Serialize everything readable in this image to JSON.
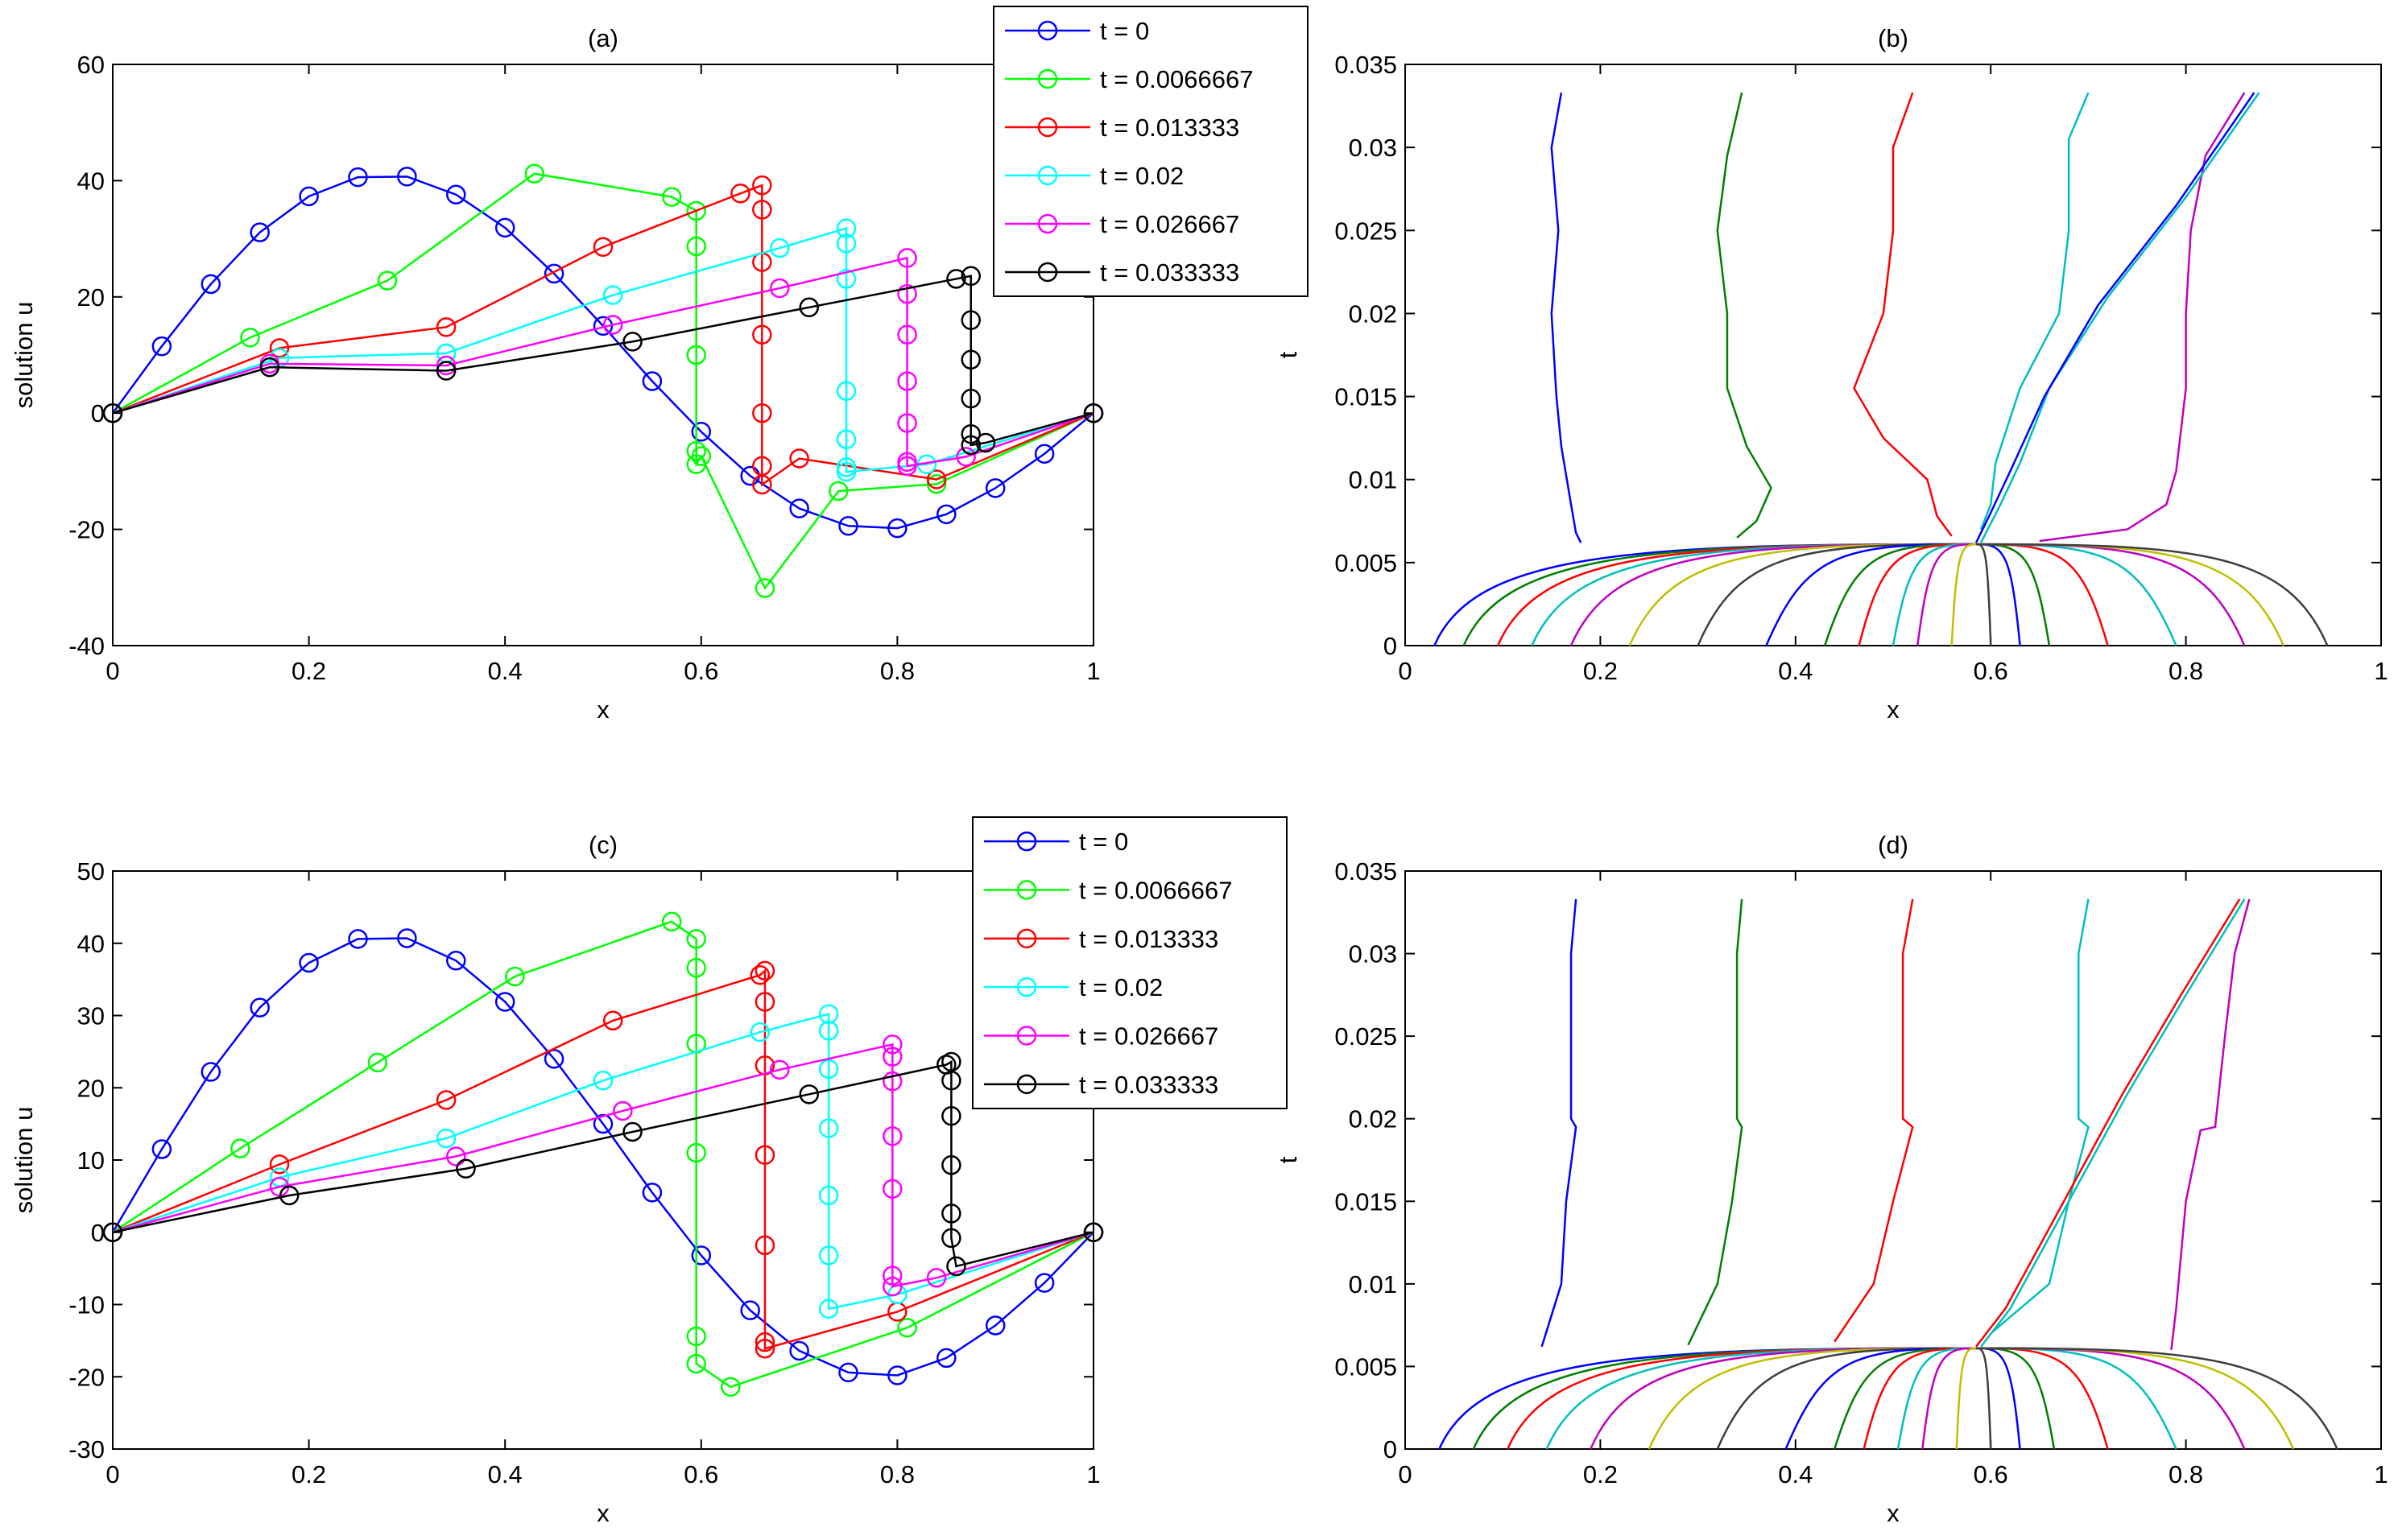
{
  "chart_data": [
    {
      "id": "a",
      "type": "line",
      "title": "(a)",
      "xlabel": "x",
      "ylabel": "solution u",
      "xlim": [
        0,
        1
      ],
      "ylim": [
        -40,
        60
      ],
      "xticks": [
        0,
        0.2,
        0.4,
        0.6,
        0.8,
        1
      ],
      "xtick_labels": [
        "0",
        "0.2",
        "0.4",
        "0.6",
        "0.8",
        "1"
      ],
      "yticks": [
        -40,
        -20,
        0,
        20,
        40,
        60
      ],
      "ytick_labels": [
        "-40",
        "-20",
        "0",
        "20",
        "40",
        "60"
      ],
      "legend": {
        "placement": "top-right",
        "entries": [
          "t = 0",
          "t = 0.0066667",
          "t = 0.013333",
          "t = 0.02",
          "t = 0.026667",
          "t = 0.033333"
        ]
      },
      "series": [
        {
          "name": "t = 0",
          "color": "#0000ff",
          "marker": "circle",
          "x": [
            0,
            0.05,
            0.1,
            0.15,
            0.2,
            0.25,
            0.3,
            0.35,
            0.4,
            0.45,
            0.5,
            0.55,
            0.6,
            0.65,
            0.7,
            0.75,
            0.8,
            0.85,
            0.9,
            0.95,
            1
          ],
          "y": [
            0,
            11.5,
            22.2,
            31.1,
            37.3,
            40.6,
            40.7,
            37.6,
            31.9,
            24,
            15,
            5.5,
            -3.2,
            -10.8,
            -16.4,
            -19.4,
            -19.8,
            -17.4,
            -12.9,
            -7,
            0
          ]
        },
        {
          "name": "t = 0.0066667",
          "color": "#00ff00",
          "marker": "circle",
          "x": [
            0,
            0.14,
            0.28,
            0.43,
            0.57,
            0.595,
            0.595,
            0.595,
            0.595,
            0.595,
            0.6,
            0.665,
            0.74,
            0.84,
            1
          ],
          "y": [
            0,
            13,
            22.8,
            41.2,
            37.2,
            34.8,
            28.7,
            10,
            -6.5,
            -8.8,
            -7.4,
            -30.1,
            -13.4,
            -12.2,
            0
          ]
        },
        {
          "name": "t = 0.013333",
          "color": "#ff0000",
          "marker": "circle",
          "x": [
            0,
            0.17,
            0.34,
            0.5,
            0.64,
            0.662,
            0.662,
            0.662,
            0.662,
            0.662,
            0.662,
            0.662,
            0.7,
            0.84,
            1
          ],
          "y": [
            0,
            11.2,
            14.8,
            28.6,
            37.8,
            39.2,
            35,
            26,
            13.5,
            0,
            -9.1,
            -12.3,
            -7.8,
            -11.4,
            0
          ]
        },
        {
          "name": "t = 0.02",
          "color": "#00ffff",
          "marker": "circle",
          "x": [
            0,
            0.17,
            0.34,
            0.51,
            0.68,
            0.748,
            0.748,
            0.748,
            0.748,
            0.748,
            0.748,
            0.748,
            0.83,
            1
          ],
          "y": [
            0,
            9.5,
            10.3,
            20.3,
            28.4,
            31.8,
            29.2,
            23.1,
            3.8,
            -4.5,
            -9.3,
            -10.1,
            -8.8,
            0
          ]
        },
        {
          "name": "t = 0.026667",
          "color": "#ff00ff",
          "marker": "circle",
          "x": [
            0,
            0.16,
            0.34,
            0.51,
            0.68,
            0.81,
            0.81,
            0.81,
            0.81,
            0.81,
            0.81,
            0.81,
            0.87,
            1
          ],
          "y": [
            0,
            8.5,
            8.2,
            15.2,
            21.5,
            26.7,
            20.5,
            13.5,
            5.5,
            -1.7,
            -8.4,
            -9.1,
            -7.5,
            0
          ]
        },
        {
          "name": "t = 0.033333",
          "color": "#000000",
          "marker": "circle",
          "x": [
            0,
            0.16,
            0.34,
            0.53,
            0.71,
            0.86,
            0.875,
            0.875,
            0.875,
            0.875,
            0.875,
            0.875,
            0.89,
            1
          ],
          "y": [
            0,
            7.9,
            7.3,
            12.3,
            18.2,
            23.1,
            23.6,
            16,
            9.2,
            2.5,
            -3.6,
            -5.5,
            -5.1,
            0
          ]
        }
      ]
    },
    {
      "id": "b",
      "type": "line",
      "title": "(b)",
      "xlabel": "x",
      "ylabel": "t",
      "xlim": [
        0,
        1
      ],
      "ylim": [
        0,
        0.035
      ],
      "xticks": [
        0,
        0.2,
        0.4,
        0.6,
        0.8,
        1
      ],
      "xtick_labels": [
        "0",
        "0.2",
        "0.4",
        "0.6",
        "0.8",
        "1"
      ],
      "yticks": [
        0,
        0.005,
        0.01,
        0.015,
        0.02,
        0.025,
        0.03,
        0.035
      ],
      "ytick_labels": [
        "0",
        "0.005",
        "0.01",
        "0.015",
        "0.02",
        "0.025",
        "0.03",
        "0.035"
      ],
      "mesh_colors": [
        "#0000ff",
        "#007f00",
        "#ff0000",
        "#00bfbf",
        "#bf00bf",
        "#bfbf00",
        "#3f3f3f"
      ],
      "upper_paths": [
        {
          "color": "#0000ff",
          "x": [
            0.16,
            0.15,
            0.157,
            0.15,
            0.155,
            0.16,
            0.17,
            0.175,
            0.18
          ],
          "t": [
            0.0333,
            0.03,
            0.025,
            0.02,
            0.015,
            0.012,
            0.0085,
            0.0068,
            0.0062
          ]
        },
        {
          "color": "#007f00",
          "x": [
            0.345,
            0.33,
            0.32,
            0.33,
            0.33,
            0.35,
            0.375,
            0.36,
            0.34
          ],
          "t": [
            0.0333,
            0.0295,
            0.025,
            0.02,
            0.0155,
            0.012,
            0.0095,
            0.0075,
            0.0065
          ]
        },
        {
          "color": "#ff0000",
          "x": [
            0.52,
            0.5,
            0.5,
            0.49,
            0.46,
            0.49,
            0.535,
            0.545,
            0.56
          ],
          "t": [
            0.0333,
            0.03,
            0.025,
            0.02,
            0.0155,
            0.0125,
            0.01,
            0.0078,
            0.0066
          ]
        },
        {
          "color": "#00bfbf",
          "x": [
            0.7,
            0.68,
            0.68,
            0.67,
            0.63,
            0.605,
            0.6,
            0.59
          ],
          "t": [
            0.0333,
            0.0305,
            0.025,
            0.02,
            0.0155,
            0.011,
            0.0085,
            0.007
          ]
        },
        {
          "color": "#bf00bf",
          "x": [
            0.86,
            0.82,
            0.805,
            0.8,
            0.8,
            0.79,
            0.78,
            0.74,
            0.65
          ],
          "t": [
            0.0333,
            0.0295,
            0.025,
            0.02,
            0.0155,
            0.0105,
            0.0085,
            0.007,
            0.0063
          ]
        },
        {
          "color": "#00bfbf",
          "x": [
            0.875,
            0.8,
            0.72,
            0.66,
            0.63,
            0.61,
            0.59
          ],
          "t": [
            0.0333,
            0.027,
            0.021,
            0.0155,
            0.011,
            0.0085,
            0.0062
          ]
        },
        {
          "color": "#0000ff",
          "x": [
            0.87,
            0.79,
            0.71,
            0.655,
            0.62,
            0.6,
            0.585
          ],
          "t": [
            0.0333,
            0.0265,
            0.0205,
            0.015,
            0.0105,
            0.008,
            0.0062
          ]
        }
      ],
      "lower_paths_start_x": [
        0.03,
        0.06,
        0.095,
        0.13,
        0.17,
        0.23,
        0.3,
        0.37,
        0.43,
        0.465,
        0.5,
        0.525,
        0.56,
        0.6,
        0.63,
        0.66,
        0.72,
        0.79,
        0.86,
        0.9,
        0.945
      ]
    },
    {
      "id": "c",
      "type": "line",
      "title": "(c)",
      "xlabel": "x",
      "ylabel": "solution u",
      "xlim": [
        0,
        1
      ],
      "ylim": [
        -30,
        50
      ],
      "xticks": [
        0,
        0.2,
        0.4,
        0.6,
        0.8,
        1
      ],
      "xtick_labels": [
        "0",
        "0.2",
        "0.4",
        "0.6",
        "0.8",
        "1"
      ],
      "yticks": [
        -30,
        -20,
        -10,
        0,
        10,
        20,
        30,
        40,
        50
      ],
      "ytick_labels": [
        "-30",
        "-20",
        "-10",
        "0",
        "10",
        "20",
        "30",
        "40",
        "50"
      ],
      "legend": {
        "placement": "top-right",
        "entries": [
          "t = 0",
          "t = 0.0066667",
          "t = 0.013333",
          "t = 0.02",
          "t = 0.026667",
          "t = 0.033333"
        ]
      },
      "series": [
        {
          "name": "t = 0",
          "color": "#0000ff",
          "marker": "circle",
          "x": [
            0,
            0.05,
            0.1,
            0.15,
            0.2,
            0.25,
            0.3,
            0.35,
            0.4,
            0.45,
            0.5,
            0.55,
            0.6,
            0.65,
            0.7,
            0.75,
            0.8,
            0.85,
            0.9,
            0.95,
            1
          ],
          "y": [
            0,
            11.5,
            22.2,
            31.1,
            37.3,
            40.6,
            40.7,
            37.6,
            31.9,
            24,
            15,
            5.5,
            -3.2,
            -10.8,
            -16.4,
            -19.4,
            -19.8,
            -17.4,
            -12.9,
            -7,
            0
          ]
        },
        {
          "name": "t = 0.0066667",
          "color": "#00ff00",
          "marker": "circle",
          "x": [
            0,
            0.13,
            0.27,
            0.41,
            0.57,
            0.595,
            0.595,
            0.595,
            0.595,
            0.595,
            0.595,
            0.63,
            0.81,
            1
          ],
          "y": [
            0,
            11.6,
            23.5,
            35.4,
            43,
            40.6,
            36.6,
            26.1,
            11,
            -14.4,
            -18.2,
            -21.4,
            -13.2,
            0
          ]
        },
        {
          "name": "t = 0.013333",
          "color": "#ff0000",
          "marker": "circle",
          "x": [
            0,
            0.17,
            0.34,
            0.51,
            0.66,
            0.665,
            0.665,
            0.665,
            0.665,
            0.665,
            0.665,
            0.665,
            0.8,
            1
          ],
          "y": [
            0,
            9.4,
            18.3,
            29.3,
            35.6,
            36.2,
            31.9,
            23.1,
            10.7,
            -1.8,
            -15.2,
            -16.1,
            -11,
            0
          ]
        },
        {
          "name": "t = 0.02",
          "color": "#00ffff",
          "marker": "circle",
          "x": [
            0,
            0.17,
            0.34,
            0.5,
            0.66,
            0.73,
            0.73,
            0.73,
            0.73,
            0.73,
            0.73,
            0.73,
            0.8,
            1
          ],
          "y": [
            0,
            7.6,
            13,
            21,
            27.7,
            30.2,
            27.9,
            22.6,
            14.4,
            5.1,
            -3.2,
            -10.6,
            -8.6,
            0
          ]
        },
        {
          "name": "t = 0.026667",
          "color": "#ff00ff",
          "marker": "circle",
          "x": [
            0,
            0.17,
            0.35,
            0.52,
            0.68,
            0.795,
            0.795,
            0.795,
            0.795,
            0.795,
            0.795,
            0.795,
            0.84,
            1
          ],
          "y": [
            0,
            6.3,
            10.5,
            16.8,
            22.5,
            26,
            24.3,
            20.9,
            13.3,
            6,
            -6,
            -7.5,
            -6.3,
            0
          ]
        },
        {
          "name": "t = 0.033333",
          "color": "#000000",
          "marker": "circle",
          "x": [
            0,
            0.18,
            0.36,
            0.53,
            0.71,
            0.85,
            0.855,
            0.855,
            0.855,
            0.855,
            0.855,
            0.855,
            0.86,
            1
          ],
          "y": [
            0,
            5.1,
            8.8,
            13.9,
            19.1,
            23.2,
            23.6,
            21,
            16.1,
            9.3,
            2.6,
            -0.8,
            -4.7,
            0
          ]
        }
      ]
    },
    {
      "id": "d",
      "type": "line",
      "title": "(d)",
      "xlabel": "x",
      "ylabel": "t",
      "xlim": [
        0,
        1
      ],
      "ylim": [
        0,
        0.035
      ],
      "xticks": [
        0,
        0.2,
        0.4,
        0.6,
        0.8,
        1
      ],
      "xtick_labels": [
        "0",
        "0.2",
        "0.4",
        "0.6",
        "0.8",
        "1"
      ],
      "yticks": [
        0,
        0.005,
        0.01,
        0.015,
        0.02,
        0.025,
        0.03,
        0.035
      ],
      "ytick_labels": [
        "0",
        "0.005",
        "0.01",
        "0.015",
        "0.02",
        "0.025",
        "0.03",
        "0.035"
      ],
      "mesh_colors": [
        "#0000ff",
        "#007f00",
        "#ff0000",
        "#00bfbf",
        "#bf00bf",
        "#bfbf00",
        "#3f3f3f"
      ],
      "upper_paths": [
        {
          "color": "#0000ff",
          "x": [
            0.175,
            0.17,
            0.17,
            0.17,
            0.175,
            0.165,
            0.16,
            0.14
          ],
          "t": [
            0.0333,
            0.03,
            0.025,
            0.02,
            0.0195,
            0.015,
            0.01,
            0.0062
          ]
        },
        {
          "color": "#007f00",
          "x": [
            0.345,
            0.34,
            0.34,
            0.34,
            0.345,
            0.335,
            0.32,
            0.29
          ],
          "t": [
            0.0333,
            0.03,
            0.025,
            0.02,
            0.0195,
            0.015,
            0.01,
            0.0063
          ]
        },
        {
          "color": "#ff0000",
          "x": [
            0.52,
            0.51,
            0.51,
            0.51,
            0.52,
            0.5,
            0.48,
            0.44
          ],
          "t": [
            0.0333,
            0.03,
            0.025,
            0.02,
            0.0195,
            0.015,
            0.01,
            0.0065
          ]
        },
        {
          "color": "#00bfbf",
          "x": [
            0.7,
            0.69,
            0.69,
            0.69,
            0.7,
            0.68,
            0.66,
            0.6
          ],
          "t": [
            0.0333,
            0.03,
            0.025,
            0.02,
            0.0195,
            0.015,
            0.01,
            0.007
          ]
        },
        {
          "color": "#bf00bf",
          "x": [
            0.865,
            0.85,
            0.84,
            0.83,
            0.815,
            0.8,
            0.79,
            0.785
          ],
          "t": [
            0.0333,
            0.03,
            0.025,
            0.0195,
            0.0193,
            0.015,
            0.0085,
            0.006
          ]
        },
        {
          "color": "#00bfbf",
          "x": [
            0.86,
            0.8,
            0.74,
            0.68,
            0.62,
            0.59
          ],
          "t": [
            0.0333,
            0.0275,
            0.0215,
            0.015,
            0.0085,
            0.0062
          ]
        },
        {
          "color": "#ff0000",
          "x": [
            0.855,
            0.795,
            0.735,
            0.675,
            0.615,
            0.585
          ],
          "t": [
            0.0333,
            0.0275,
            0.0215,
            0.015,
            0.0085,
            0.0062
          ]
        }
      ],
      "lower_paths_start_x": [
        0.035,
        0.07,
        0.105,
        0.145,
        0.19,
        0.25,
        0.32,
        0.39,
        0.44,
        0.47,
        0.505,
        0.53,
        0.565,
        0.6,
        0.63,
        0.665,
        0.72,
        0.79,
        0.86,
        0.91,
        0.955
      ]
    }
  ]
}
